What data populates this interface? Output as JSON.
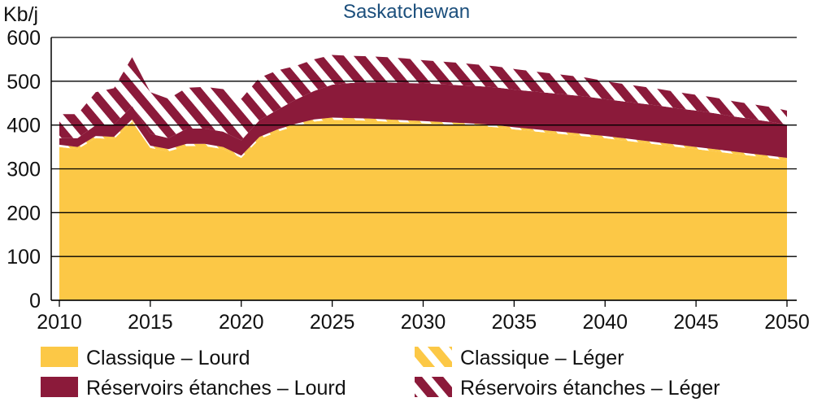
{
  "chart_data": {
    "type": "area",
    "title": "Saskatchewan",
    "ylabel": "Kb/j",
    "xlim": [
      2010,
      2050
    ],
    "ylim": [
      0,
      600
    ],
    "yticks": [
      0,
      100,
      200,
      300,
      400,
      500,
      600
    ],
    "xticks": [
      2010,
      2015,
      2020,
      2025,
      2030,
      2035,
      2040,
      2045,
      2050
    ],
    "grid": true,
    "stacked": true,
    "legend_position": "bottom",
    "x": [
      2010,
      2011,
      2012,
      2013,
      2014,
      2015,
      2016,
      2017,
      2018,
      2019,
      2020,
      2021,
      2022,
      2023,
      2024,
      2025,
      2026,
      2027,
      2028,
      2029,
      2030,
      2031,
      2032,
      2033,
      2034,
      2035,
      2036,
      2037,
      2038,
      2039,
      2040,
      2041,
      2042,
      2043,
      2044,
      2045,
      2046,
      2047,
      2048,
      2049,
      2050
    ],
    "series": [
      {
        "name": "Classique – Lourd",
        "color": "#fcc846",
        "pattern": "solid",
        "values": [
          350,
          345,
          370,
          368,
          408,
          348,
          340,
          352,
          352,
          345,
          325,
          368,
          385,
          398,
          408,
          412,
          411,
          410,
          408,
          406,
          404,
          402,
          400,
          398,
          395,
          390,
          386,
          382,
          378,
          374,
          370,
          365,
          360,
          355,
          350,
          345,
          340,
          335,
          330,
          325,
          320
        ]
      },
      {
        "name": "Classique – Léger",
        "color": "#fcc846",
        "pattern": "hatch",
        "values": [
          5,
          5,
          5,
          5,
          5,
          5,
          5,
          5,
          5,
          5,
          5,
          5,
          5,
          5,
          5,
          5,
          5,
          5,
          5,
          5,
          5,
          5,
          5,
          5,
          5,
          5,
          5,
          5,
          5,
          5,
          5,
          5,
          5,
          5,
          5,
          5,
          5,
          5,
          5,
          5,
          5
        ]
      },
      {
        "name": "Réservoirs étanches – Lourd",
        "color": "#8b1a3a",
        "pattern": "solid",
        "values": [
          15,
          20,
          25,
          28,
          30,
          27,
          25,
          35,
          35,
          35,
          35,
          38,
          45,
          55,
          65,
          75,
          80,
          82,
          84,
          85,
          86,
          86,
          86,
          86,
          86,
          86,
          86,
          86,
          86,
          86,
          84,
          84,
          84,
          84,
          83,
          83,
          82,
          80,
          79,
          78,
          76
        ]
      },
      {
        "name": "Réservoirs étanches – Léger",
        "color": "#8b1a3a",
        "pattern": "hatch",
        "values": [
          55,
          55,
          75,
          83,
          112,
          95,
          90,
          93,
          95,
          97,
          95,
          97,
          90,
          77,
          72,
          68,
          62,
          60,
          58,
          56,
          53,
          52,
          51,
          49,
          48,
          47,
          46,
          45,
          44,
          43,
          41,
          40,
          39,
          38,
          37,
          36,
          36,
          35,
          34,
          34,
          32
        ]
      }
    ]
  }
}
